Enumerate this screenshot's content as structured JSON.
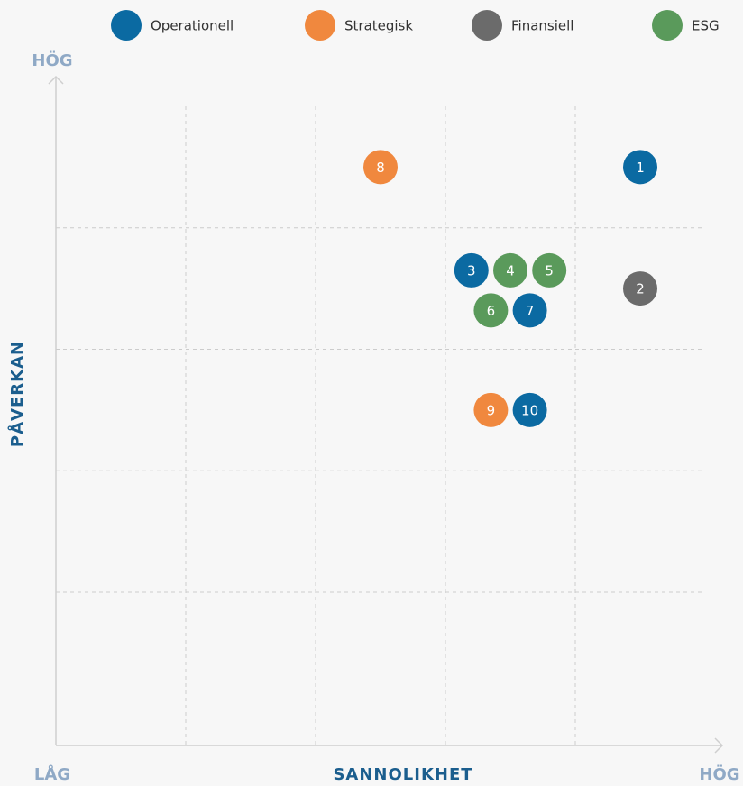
{
  "chart_data": {
    "type": "scatter",
    "xlabel": "SANNOLIKHET",
    "ylabel": "PÅVERKAN",
    "x_low_label": "LÅG",
    "x_high_label": "HÖG",
    "y_high_label": "HÖG",
    "xlim": [
      0,
      5
    ],
    "ylim": [
      -0.25,
      5.25
    ],
    "xticks": [
      1,
      2,
      3,
      4
    ],
    "yticks": [
      1,
      2,
      3,
      4
    ],
    "grid": true,
    "legend": "top",
    "series": [
      {
        "name": "Operationell",
        "color": "#0b6aa2",
        "x": [
          4.5,
          3.2,
          3.65,
          3.65
        ],
        "values": [
          4.5,
          3.65,
          3.32,
          2.5
        ],
        "labels": [
          "1",
          "3",
          "7",
          "10"
        ]
      },
      {
        "name": "Strategisk",
        "color": "#f0883e",
        "x": [
          2.5,
          3.35
        ],
        "values": [
          4.5,
          2.5
        ],
        "labels": [
          "8",
          "9"
        ]
      },
      {
        "name": "Finansiell",
        "color": "#6b6b6b",
        "x": [
          4.5
        ],
        "values": [
          3.5
        ],
        "labels": [
          "2"
        ]
      },
      {
        "name": "ESG",
        "color": "#5a9a5b",
        "x": [
          3.5,
          3.8,
          3.35
        ],
        "values": [
          3.65,
          3.65,
          3.32
        ],
        "labels": [
          "4",
          "5",
          "6"
        ]
      }
    ]
  }
}
